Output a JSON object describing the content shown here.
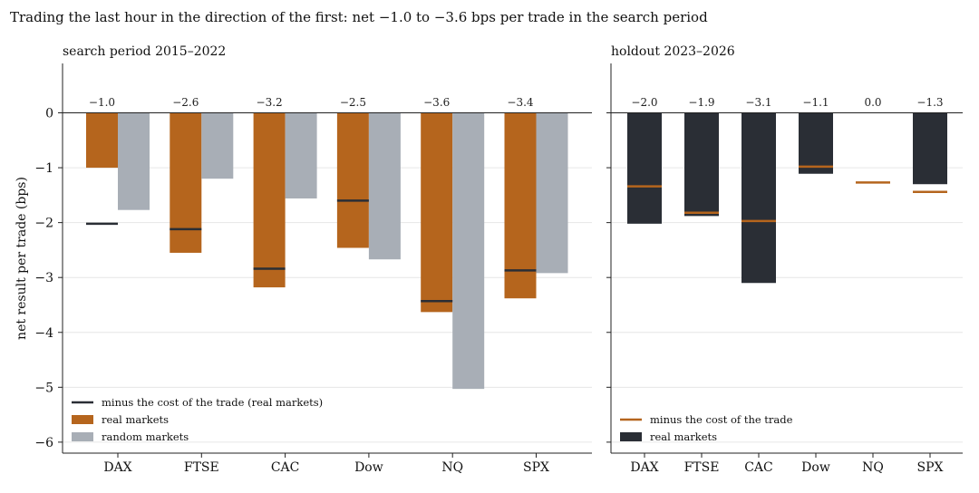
{
  "title": "Trading the last hour in the direction of the first: net −1.0 to −3.6 bps per trade in the search period",
  "colors": {
    "real": "#b5651d",
    "random": "#a8aeb6",
    "dark": "#2a2e35",
    "grid": "#e6e6e6"
  },
  "chart_data": [
    {
      "type": "bar",
      "title": "search period 2015–2022",
      "ylabel": "net result per trade (bps)",
      "xlabel": "",
      "ylim": [
        -6.2,
        0.9
      ],
      "yticks": [
        0,
        -1,
        -2,
        -3,
        -4,
        -5,
        -6
      ],
      "ytick_labels": [
        "0",
        "−1",
        "−2",
        "−3",
        "−4",
        "−5",
        "−6"
      ],
      "grid": "horizontal",
      "legend_position": "lower-left",
      "categories": [
        "DAX",
        "FTSE",
        "CAC",
        "Dow",
        "NQ",
        "SPX"
      ],
      "series": [
        {
          "name": "real markets",
          "color": "#b5651d",
          "values": [
            -1.0,
            -2.55,
            -3.18,
            -2.46,
            -3.63,
            -3.38
          ]
        },
        {
          "name": "random markets",
          "color": "#a8aeb6",
          "values": [
            -1.77,
            -1.2,
            -1.56,
            -2.67,
            -5.03,
            -2.92
          ]
        }
      ],
      "cost_markers": {
        "name": "minus the cost of the trade (real markets)",
        "color": "#2a2e35",
        "values": [
          -2.02,
          -2.12,
          -2.84,
          -1.6,
          -3.43,
          -2.87
        ]
      },
      "bar_labels": [
        "−1.0",
        "−2.6",
        "−3.2",
        "−2.5",
        "−3.6",
        "−3.4"
      ]
    },
    {
      "type": "bar",
      "title": "holdout 2023–2026",
      "ylabel": "",
      "xlabel": "",
      "ylim": [
        -6.2,
        0.9
      ],
      "grid": "horizontal",
      "legend_position": "lower-left",
      "categories": [
        "DAX",
        "FTSE",
        "CAC",
        "Dow",
        "NQ",
        "SPX"
      ],
      "series": [
        {
          "name": "real markets",
          "color": "#2a2e35",
          "values": [
            -2.02,
            -1.88,
            -3.1,
            -1.11,
            0.0,
            -1.3
          ]
        }
      ],
      "cost_markers": {
        "name": "minus the cost of the trade",
        "color": "#b5651d",
        "values": [
          -1.34,
          -1.82,
          -1.97,
          -0.98,
          -1.27,
          -1.44
        ]
      },
      "bar_labels": [
        "−2.0",
        "−1.9",
        "−3.1",
        "−1.1",
        "0.0",
        "−1.3"
      ]
    }
  ]
}
